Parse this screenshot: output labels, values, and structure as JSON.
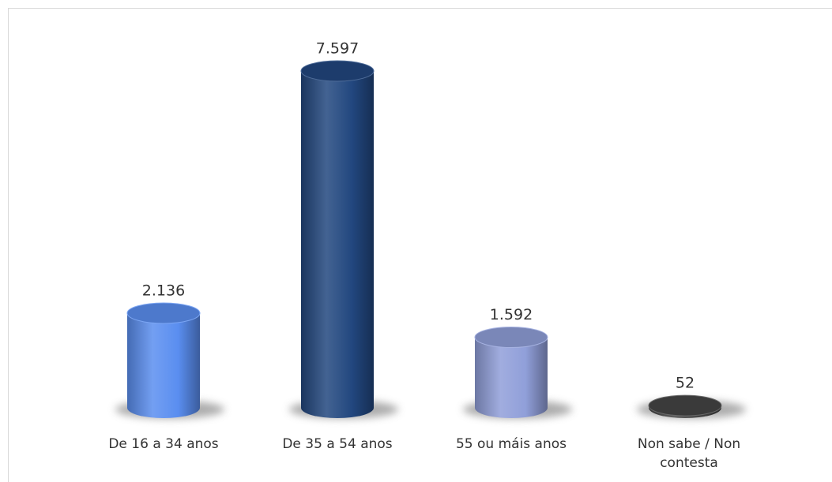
{
  "chart_data": {
    "type": "bar",
    "categories": [
      "De 16 a 34 anos",
      "De 35 a 54 anos",
      "55 ou máis anos",
      "Non sabe / Non contesta"
    ],
    "values": [
      2136,
      7597,
      1592,
      52
    ],
    "value_labels": [
      "2.136",
      "7.597",
      "1.592",
      "52"
    ],
    "colors": [
      "#5a8ef0",
      "#22477f",
      "#909fd9",
      "#444444"
    ]
  }
}
